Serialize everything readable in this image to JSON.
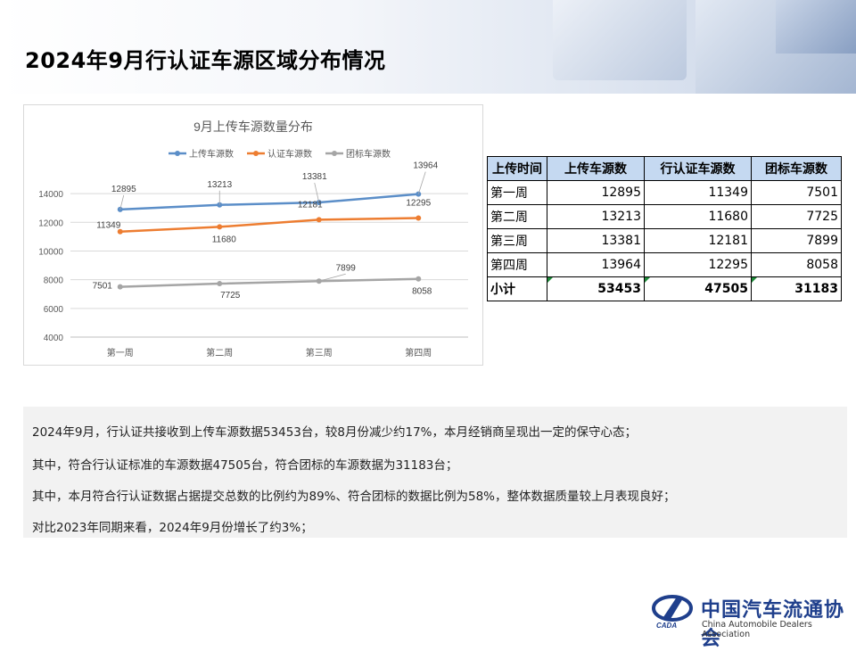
{
  "page": {
    "title": "2024年9月行认证车源区域分布情况"
  },
  "chart_data": {
    "type": "line",
    "title": "9月上传车源数量分布",
    "categories": [
      "第一周",
      "第二周",
      "第三周",
      "第四周"
    ],
    "series": [
      {
        "name": "上传车源数",
        "values": [
          12895,
          13213,
          13381,
          13964
        ],
        "color": "#5b8ec8"
      },
      {
        "name": "认证车源数",
        "values": [
          11349,
          11680,
          12181,
          12295
        ],
        "color": "#ed7d31"
      },
      {
        "name": "团标车源数",
        "values": [
          7501,
          7725,
          7899,
          8058
        ],
        "color": "#a5a5a5"
      }
    ],
    "yticks": [
      4000,
      6000,
      8000,
      10000,
      12000,
      14000
    ],
    "ylim": [
      4000,
      15000
    ],
    "grid": true,
    "legend": "top"
  },
  "table": {
    "headers": [
      "上传时间",
      "上传车源数",
      "行认证车源数",
      "团标车源数"
    ],
    "rows": [
      {
        "label": "第一周",
        "values": [
          "12895",
          "11349",
          "7501"
        ]
      },
      {
        "label": "第二周",
        "values": [
          "13213",
          "11680",
          "7725"
        ]
      },
      {
        "label": "第三周",
        "values": [
          "13381",
          "12181",
          "7899"
        ]
      },
      {
        "label": "第四周",
        "values": [
          "13964",
          "12295",
          "8058"
        ]
      }
    ],
    "total": {
      "label": "小计",
      "values": [
        "53453",
        "47505",
        "31183"
      ]
    }
  },
  "notes": [
    "2024年9月，行认证共接收到上传车源数据53453台，较8月份减少约17%，本月经销商呈现出一定的保守心态；",
    "其中，符合行认证标准的车源数据47505台，符合团标的车源数据为31183台；",
    "其中，本月符合行认证数据占据提交总数的比例约为89%、符合团标的数据比例为58%，整体数据质量较上月表现良好；",
    "对比2023年同期来看，2024年9月份增长了约3%；"
  ],
  "logo": {
    "cn": "中国汽车流通协会",
    "en": "China Automobile Dealers Association",
    "abbr": "CADA"
  }
}
